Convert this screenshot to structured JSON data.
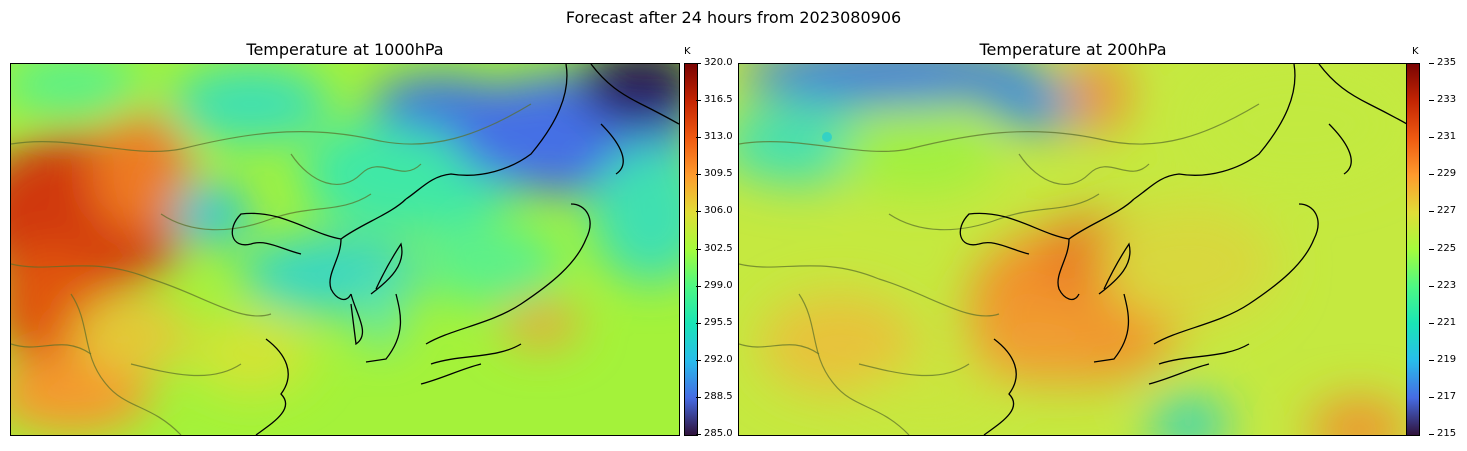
{
  "figure": {
    "title": "Forecast after 24 hours from 2023080906"
  },
  "colormap": "turbo",
  "panels": [
    {
      "title": "Temperature at 1000hPa",
      "unit": "K",
      "vmin": 285.0,
      "vmax": 320.0,
      "ticks": [
        "320.0",
        "316.5",
        "313.0",
        "309.5",
        "306.0",
        "302.5",
        "299.0",
        "295.5",
        "292.0",
        "288.5",
        "285.0"
      ]
    },
    {
      "title": "Temperature at 200hPa",
      "unit": "K",
      "vmin": 215,
      "vmax": 235,
      "ticks": [
        "235",
        "233",
        "231",
        "229",
        "227",
        "225",
        "223",
        "221",
        "219",
        "217",
        "215"
      ]
    }
  ]
}
